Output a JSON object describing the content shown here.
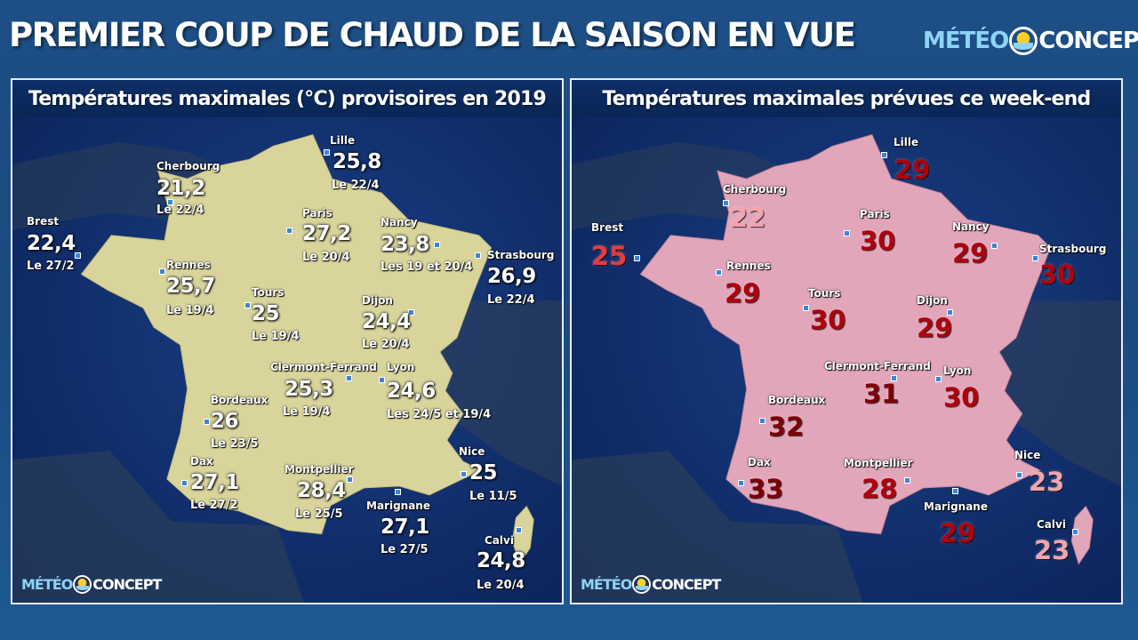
{
  "title": "PREMIER COUP DE CHAUD DE LA SAISON EN VUE",
  "brand": {
    "part1": "MÉTÉO",
    "part2": "CONCEPT"
  },
  "colors": {
    "land_left": "#d9d49b",
    "land_right": "#e2a6bb",
    "sea": "#12316f",
    "dark_red": "#b0000d",
    "mid_red": "#e83b3f",
    "pink": "#f2a4ad"
  },
  "left_panel": {
    "title": "Températures maximales (°C) provisoires en 2019",
    "cities": [
      {
        "name": "Lille",
        "value": "25,8",
        "date": "Le 22/4"
      },
      {
        "name": "Cherbourg",
        "value": "21,2",
        "date": "Le 22/4"
      },
      {
        "name": "Paris",
        "value": "27,2",
        "date": "Le 20/4"
      },
      {
        "name": "Nancy",
        "value": "23,8",
        "date": "Les 19 et 20/4"
      },
      {
        "name": "Brest",
        "value": "22,4",
        "date": "Le 27/2"
      },
      {
        "name": "Strasbourg",
        "value": "26,9",
        "date": "Le 22/4"
      },
      {
        "name": "Rennes",
        "value": "25,7",
        "date": "Le 19/4"
      },
      {
        "name": "Tours",
        "value": "25",
        "date": "Le 19/4"
      },
      {
        "name": "Dijon",
        "value": "24,4",
        "date": "Le 20/4"
      },
      {
        "name": "Clermont-Ferrand",
        "value": "25,3",
        "date": "Le 19/4"
      },
      {
        "name": "Lyon",
        "value": "24,6",
        "date": "Les 24/5 et 19/4"
      },
      {
        "name": "Bordeaux",
        "value": "26",
        "date": "Le 23/5"
      },
      {
        "name": "Nice",
        "value": "25",
        "date": "Le 11/5"
      },
      {
        "name": "Dax",
        "value": "27,1",
        "date": "Le 27/2"
      },
      {
        "name": "Montpellier",
        "value": "28,4",
        "date": "Le 25/5"
      },
      {
        "name": "Marignane",
        "value": "27,1",
        "date": "Le 27/5"
      },
      {
        "name": "Calvi",
        "value": "24,8",
        "date": "Le 20/4"
      }
    ]
  },
  "right_panel": {
    "title": "Températures maximales prévues ce week-end",
    "cities": [
      {
        "name": "Lille",
        "value": "29"
      },
      {
        "name": "Cherbourg",
        "value": "22"
      },
      {
        "name": "Paris",
        "value": "30"
      },
      {
        "name": "Nancy",
        "value": "29"
      },
      {
        "name": "Brest",
        "value": "25"
      },
      {
        "name": "Strasbourg",
        "value": "30"
      },
      {
        "name": "Rennes",
        "value": "29"
      },
      {
        "name": "Tours",
        "value": "30"
      },
      {
        "name": "Dijon",
        "value": "29"
      },
      {
        "name": "Clermont-Ferrand",
        "value": "31"
      },
      {
        "name": "Lyon",
        "value": "30"
      },
      {
        "name": "Bordeaux",
        "value": "32"
      },
      {
        "name": "Nice",
        "value": "23"
      },
      {
        "name": "Dax",
        "value": "33"
      },
      {
        "name": "Montpellier",
        "value": "28"
      },
      {
        "name": "Marignane",
        "value": "29"
      },
      {
        "name": "Calvi",
        "value": "23"
      }
    ]
  }
}
